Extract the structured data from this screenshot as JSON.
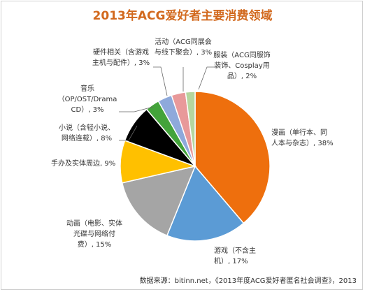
{
  "chart_data": {
    "type": "pie",
    "title": "2013年ACG爱好者主要消费领域",
    "slices": [
      {
        "label_lines": [
          "漫画（单行本、同",
          "人本与杂志）, 38%"
        ],
        "value": 38,
        "color": "#ee6f0d"
      },
      {
        "label_lines": [
          "游戏（不含主",
          "机）, 17%"
        ],
        "value": 17,
        "color": "#5b9bd5"
      },
      {
        "label_lines": [
          "动画（电影、实体",
          "光碟与网络付",
          "费）, 15%"
        ],
        "value": 15,
        "color": "#a5a5a5"
      },
      {
        "label_lines": [
          "手办及实体周边, 9%"
        ],
        "value": 9,
        "color": "#ffc000"
      },
      {
        "label_lines": [
          "小说（含轻小说、",
          "网络连载）, 8%"
        ],
        "value": 8,
        "color": "#000000"
      },
      {
        "label_lines": [
          "音乐",
          "（OP/OST/Drama",
          "CD）, 3%"
        ],
        "value": 3,
        "color": "#43a33a"
      },
      {
        "label_lines": [
          "硬件相关（含游戏",
          "主机与配件）, 3%"
        ],
        "value": 3,
        "color": "#8ea9db"
      },
      {
        "label_lines": [
          "活动（ACG同展会",
          "与线下聚会）, 3%"
        ],
        "value": 3,
        "color": "#e8999a"
      },
      {
        "label_lines": [
          "服装（ACG同服饰",
          "装饰、Cosplay用",
          "品）, 2%"
        ],
        "value": 2,
        "color": "#b5d69e"
      }
    ]
  },
  "source": "数据来源：bitinn.net，《2013年度ACG爱好者匿名社会调查》，2013"
}
